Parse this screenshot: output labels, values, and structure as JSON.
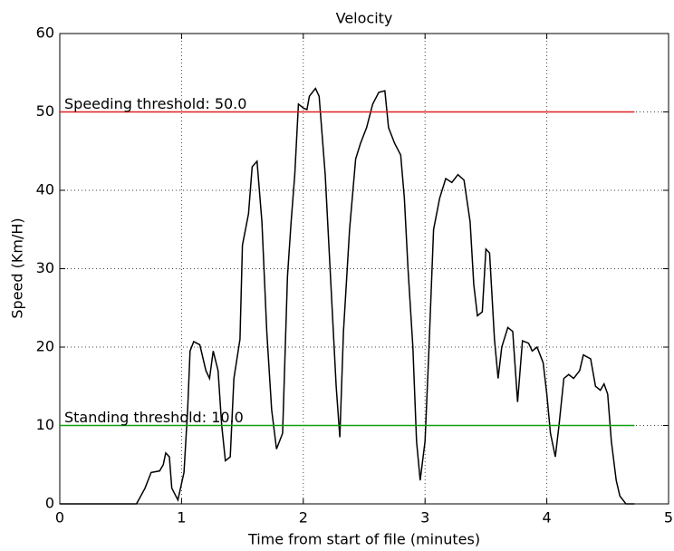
{
  "chart_data": {
    "type": "line",
    "title": "Velocity",
    "x_label": "Time from start of file (minutes)",
    "y_label": "Speed (Km/H)",
    "xlim": [
      0,
      5
    ],
    "xticks": [
      0,
      1,
      2,
      3,
      4,
      5
    ],
    "ylim": [
      0,
      60
    ],
    "yticks": [
      0,
      10,
      20,
      30,
      40,
      50,
      60
    ],
    "grid": true,
    "series": [
      {
        "color": "#000000",
        "x": [
          0,
          0.1,
          0.4,
          0.63,
          0.7,
          0.75,
          0.82,
          0.85,
          0.87,
          0.9,
          0.92,
          0.97,
          1.02,
          1.05,
          1.07,
          1.1,
          1.15,
          1.2,
          1.23,
          1.26,
          1.3,
          1.33,
          1.36,
          1.4,
          1.43,
          1.48,
          1.5,
          1.55,
          1.58,
          1.62,
          1.66,
          1.7,
          1.74,
          1.78,
          1.83,
          1.87,
          1.9,
          1.93,
          1.96,
          2.0,
          2.03,
          2.05,
          2.1,
          2.13,
          2.18,
          2.22,
          2.27,
          2.3,
          2.33,
          2.38,
          2.43,
          2.47,
          2.52,
          2.57,
          2.62,
          2.67,
          2.7,
          2.75,
          2.8,
          2.83,
          2.86,
          2.9,
          2.93,
          2.96,
          3.0,
          3.03,
          3.07,
          3.12,
          3.17,
          3.22,
          3.27,
          3.32,
          3.37,
          3.4,
          3.43,
          3.47,
          3.5,
          3.53,
          3.57,
          3.6,
          3.63,
          3.68,
          3.72,
          3.76,
          3.8,
          3.85,
          3.88,
          3.92,
          3.97,
          4.0,
          4.03,
          4.07,
          4.1,
          4.14,
          4.18,
          4.22,
          4.27,
          4.3,
          4.36,
          4.4,
          4.44,
          4.47,
          4.5,
          4.53,
          4.57,
          4.6,
          4.65,
          4.72
        ],
        "values": [
          0,
          0,
          0,
          0,
          2,
          4,
          4.2,
          5,
          6.5,
          6,
          2,
          0.5,
          4,
          12,
          19.5,
          20.7,
          20.3,
          17,
          16,
          19.5,
          17,
          10,
          5.5,
          6,
          16,
          21,
          33,
          37,
          43,
          43.7,
          36,
          22,
          12,
          7,
          9,
          29,
          36,
          42,
          51,
          50.5,
          50.3,
          52,
          53,
          52,
          42,
          30,
          15,
          8.5,
          22,
          35,
          44,
          46,
          48,
          51,
          52.5,
          52.7,
          48,
          46,
          44.5,
          39,
          30,
          20,
          8,
          3,
          8,
          19,
          35,
          39,
          41.5,
          41,
          42,
          41.3,
          36,
          28,
          24,
          24.5,
          32.5,
          32,
          21,
          16,
          20,
          22.5,
          22,
          13,
          20.8,
          20.5,
          19.5,
          20,
          18,
          14,
          9,
          6,
          10,
          16,
          16.5,
          16,
          17,
          19,
          18.5,
          15,
          14.5,
          15.3,
          14,
          8,
          3,
          1,
          0,
          0
        ]
      }
    ],
    "thresholds": [
      {
        "label": "Speeding threshold: 50.0",
        "value": 50,
        "color": "#e02020"
      },
      {
        "label": "Standing threshold: 10.0",
        "value": 10,
        "color": "#10a010"
      }
    ]
  }
}
